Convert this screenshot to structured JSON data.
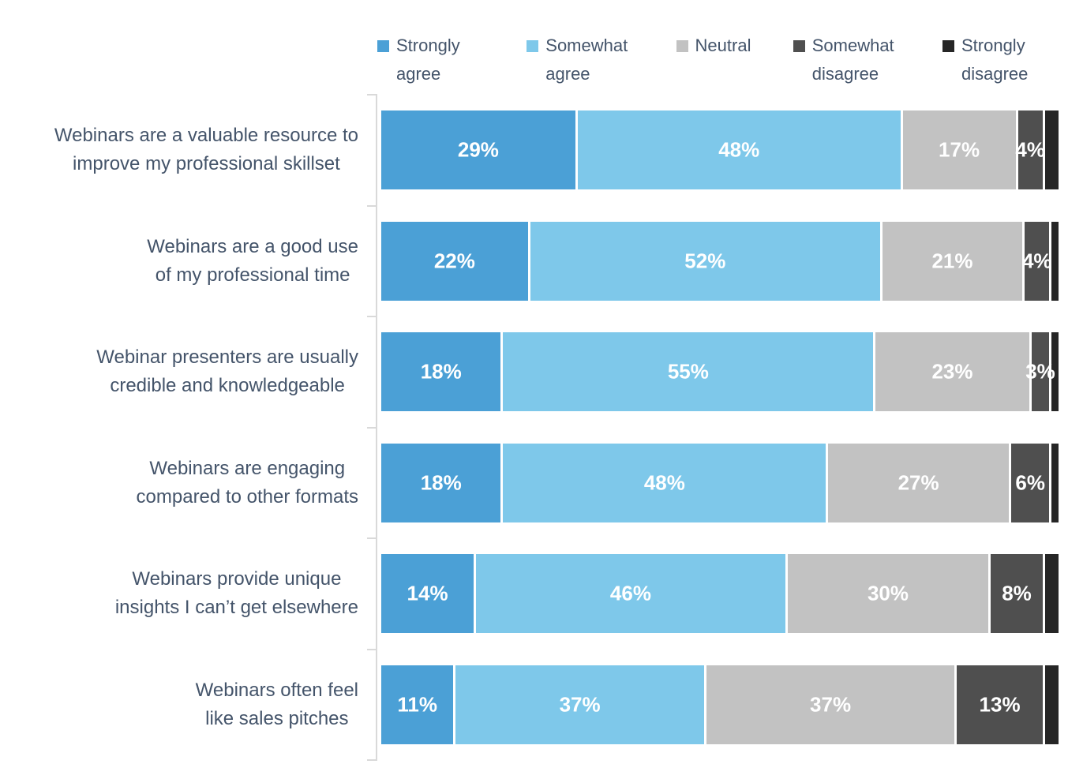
{
  "colors": {
    "strongly_agree": "#4BA0D6",
    "somewhat_agree": "#7EC8EA",
    "neutral": "#C2C2C2",
    "somewhat_disagree": "#4F4F4F",
    "strongly_disagree": "#262626",
    "label_text": "#44546A",
    "bar_value_text": "#FFFFFF",
    "axis": "#D9D9D9"
  },
  "chart_data": {
    "type": "bar",
    "orientation": "horizontal",
    "stacked": true,
    "title": "",
    "xlabel": "",
    "ylabel": "",
    "xlim": [
      0,
      100
    ],
    "grid": false,
    "legend_position": "top",
    "value_suffix": "%",
    "categories": [
      "Webinars are a valuable resource to improve my professional skillset",
      "Webinars are a good use of my professional time",
      "Webinar presenters are usually credible and knowledgeable",
      "Webinars are engaging compared to other formats",
      "Webinars provide unique insights I can’t get elsewhere",
      "Webinars often feel like sales pitches"
    ],
    "category_lines": [
      [
        "Webinars are a valuable resource to",
        "improve my professional skillset"
      ],
      [
        "Webinars are a good use",
        "of my professional time"
      ],
      [
        "Webinar presenters are usually",
        "credible and knowledgeable"
      ],
      [
        "Webinars are engaging",
        "compared to other formats"
      ],
      [
        "Webinars provide unique",
        "insights I can’t get elsewhere"
      ],
      [
        "Webinars often feel",
        "like sales pitches"
      ]
    ],
    "series": [
      {
        "name": "Strongly agree",
        "color": "#4BA0D6",
        "show_labels": true,
        "values": [
          29,
          22,
          18,
          18,
          14,
          11
        ]
      },
      {
        "name": "Somewhat agree",
        "color": "#7EC8EA",
        "show_labels": true,
        "values": [
          48,
          52,
          55,
          48,
          46,
          37
        ]
      },
      {
        "name": "Neutral",
        "color": "#C2C2C2",
        "show_labels": true,
        "values": [
          17,
          21,
          23,
          27,
          30,
          37
        ]
      },
      {
        "name": "Somewhat disagree",
        "color": "#4F4F4F",
        "show_labels": true,
        "values": [
          4,
          4,
          3,
          6,
          8,
          13
        ]
      },
      {
        "name": "Strongly disagree",
        "color": "#262626",
        "show_labels": false,
        "values": [
          2,
          1,
          1,
          1,
          2,
          2
        ]
      }
    ]
  }
}
